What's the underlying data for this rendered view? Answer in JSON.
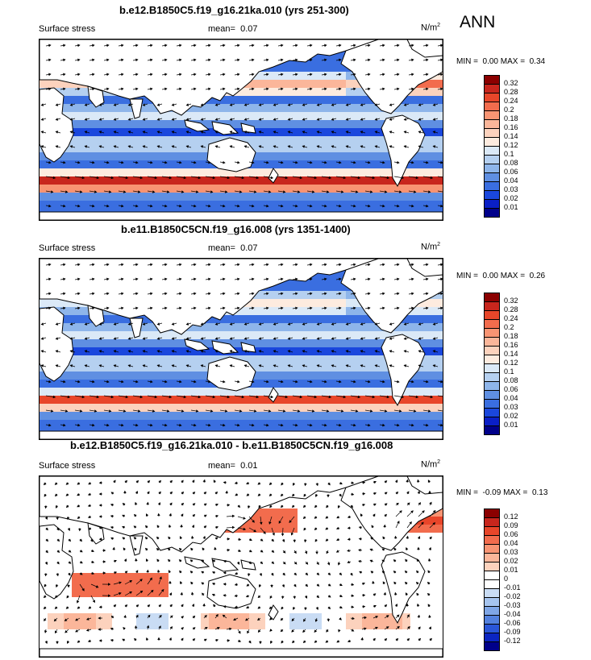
{
  "annual_tag": "ANN",
  "panels": [
    {
      "title": "b.e12.B1850C5.f19_g16.21ka.010 (yrs 251-300)",
      "variable": "Surface stress",
      "mean_label": "mean=",
      "mean_value": "0.07",
      "units_base": "N/m",
      "units_exp": "2",
      "min_label": "MIN =",
      "min_value": "0.00",
      "max_label": "MAX =",
      "max_value": "0.34",
      "scale": "full"
    },
    {
      "title": "b.e11.B1850C5CN.f19_g16.008 (yrs 1351-1400)",
      "variable": "Surface stress",
      "mean_label": "mean=",
      "mean_value": "0.07",
      "units_base": "N/m",
      "units_exp": "2",
      "min_label": "MIN =",
      "min_value": "0.00",
      "max_label": "MAX =",
      "max_value": "0.26",
      "scale": "full"
    },
    {
      "title": "b.e12.B1850C5.f19_g16.21ka.010 - b.e11.B1850C5CN.f19_g16.008",
      "variable": "Surface stress",
      "mean_label": "mean=",
      "mean_value": "0.01",
      "units_base": "N/m",
      "units_exp": "2",
      "min_label": "MIN =",
      "min_value": "-0.09",
      "max_label": "MAX =",
      "max_value": "0.13",
      "scale": "diff"
    }
  ],
  "colorbars": {
    "full": {
      "labels": [
        "0.32",
        "0.28",
        "0.24",
        "0.2",
        "0.18",
        "0.16",
        "0.14",
        "0.12",
        "0.1",
        "0.08",
        "0.06",
        "0.04",
        "0.03",
        "0.02",
        "0.01"
      ],
      "colors": [
        "#8b0000",
        "#c8261d",
        "#e8462a",
        "#f26c4d",
        "#f89473",
        "#fbb69a",
        "#fcd2bd",
        "#fdebdf",
        "#dbe9f7",
        "#b5d0f0",
        "#8eb5ea",
        "#5f8fe2",
        "#3a6ee0",
        "#1a47dd",
        "#0a1fc7",
        "#00008a"
      ]
    },
    "diff": {
      "labels": [
        "0.12",
        "0.09",
        "0.06",
        "0.04",
        "0.03",
        "0.02",
        "0.01",
        "0",
        "-0.01",
        "-0.02",
        "-0.03",
        "-0.04",
        "-0.06",
        "-0.09",
        "-0.12"
      ],
      "colors": [
        "#8b0000",
        "#c8261d",
        "#e8462a",
        "#f26c4d",
        "#f89473",
        "#fbb69a",
        "#fcd2bd",
        "#ffffff",
        "#ffffff",
        "#c9dcf4",
        "#a6c4ee",
        "#7fa6e6",
        "#5381de",
        "#2a56d8",
        "#0b25c2",
        "#00008a"
      ]
    }
  }
}
